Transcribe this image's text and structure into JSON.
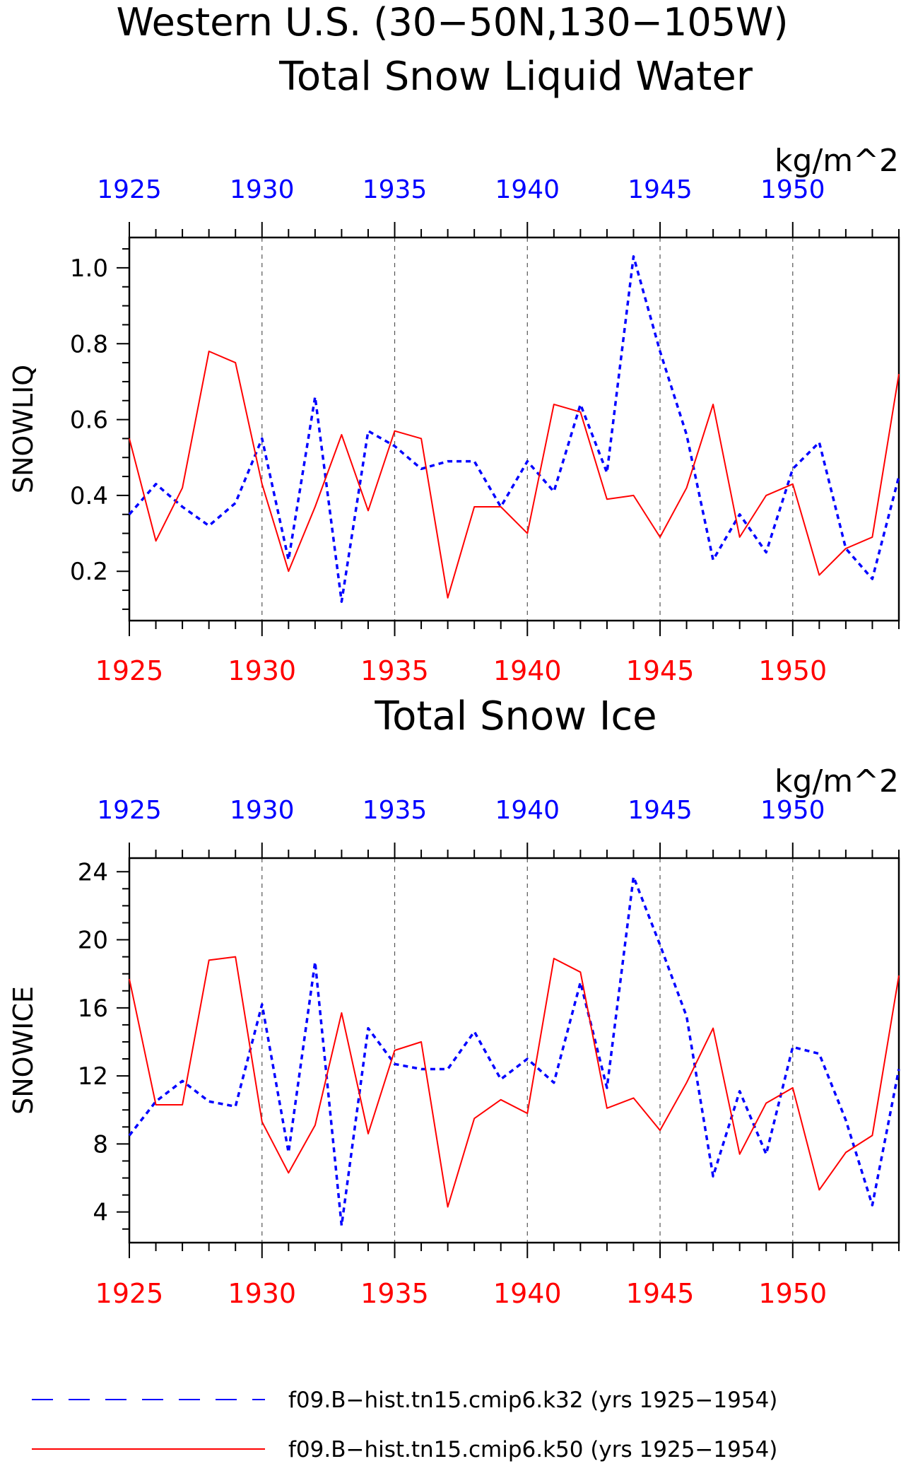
{
  "figure": {
    "title_line1": "Western U.S. (30−50N,130−105W)"
  },
  "legend": {
    "k32": "f09.B−hist.tn15.cmip6.k32 (yrs 1925−1954)",
    "k50": "f09.B−hist.tn15.cmip6.k50 (yrs 1925−1954)"
  },
  "colors": {
    "k32": "#0000ff",
    "k50": "#ff0000",
    "axis": "#000000",
    "grid": "#555555"
  },
  "chart_data": [
    {
      "type": "line",
      "title": "Total Snow Liquid Water",
      "units": "kg/m^2",
      "ylabel": "SNOWLIQ",
      "xlabel": "",
      "xlim": [
        1925,
        1954
      ],
      "ylim": [
        0.07,
        1.08
      ],
      "yticks": [
        "0.2",
        "0.4",
        "0.6",
        "0.8",
        "1.0"
      ],
      "ytick_values": [
        0.2,
        0.4,
        0.6,
        0.8,
        1.0
      ],
      "xticks_top": [
        "1925",
        "1930",
        "1935",
        "1940",
        "1945",
        "1950"
      ],
      "xticks_bottom": [
        "1925",
        "1930",
        "1935",
        "1940",
        "1945",
        "1950"
      ],
      "xtick_values": [
        1925,
        1930,
        1935,
        1940,
        1945,
        1950
      ],
      "vgrid": [
        1930,
        1935,
        1940,
        1945,
        1950
      ],
      "x": [
        1925,
        1926,
        1927,
        1928,
        1929,
        1930,
        1931,
        1932,
        1933,
        1934,
        1935,
        1936,
        1937,
        1938,
        1939,
        1940,
        1941,
        1942,
        1943,
        1944,
        1945,
        1946,
        1947,
        1948,
        1949,
        1950,
        1951,
        1952,
        1953,
        1954
      ],
      "series": [
        {
          "name": "f09.B−hist.tn15.cmip6.k32 (yrs 1925−1954)",
          "style": "dashed",
          "values": [
            0.35,
            0.43,
            0.37,
            0.32,
            0.38,
            0.55,
            0.23,
            0.66,
            0.12,
            0.57,
            0.53,
            0.47,
            0.49,
            0.49,
            0.37,
            0.49,
            0.41,
            0.64,
            0.46,
            1.03,
            0.78,
            0.56,
            0.23,
            0.35,
            0.25,
            0.47,
            0.54,
            0.26,
            0.18,
            0.45
          ]
        },
        {
          "name": "f09.B−hist.tn15.cmip6.k50 (yrs 1925−1954)",
          "style": "solid",
          "values": [
            0.55,
            0.28,
            0.42,
            0.78,
            0.75,
            0.43,
            0.2,
            0.37,
            0.56,
            0.36,
            0.57,
            0.55,
            0.13,
            0.37,
            0.37,
            0.3,
            0.64,
            0.62,
            0.39,
            0.4,
            0.29,
            0.42,
            0.64,
            0.29,
            0.4,
            0.43,
            0.19,
            0.26,
            0.29,
            0.72
          ]
        }
      ]
    },
    {
      "type": "line",
      "title": "Total Snow Ice",
      "units": "kg/m^2",
      "ylabel": "SNOWICE",
      "xlabel": "",
      "xlim": [
        1925,
        1954
      ],
      "ylim": [
        2.2,
        24.8
      ],
      "yticks": [
        "4",
        "8",
        "12",
        "16",
        "20",
        "24"
      ],
      "ytick_values": [
        4,
        8,
        12,
        16,
        20,
        24
      ],
      "xticks_top": [
        "1925",
        "1930",
        "1935",
        "1940",
        "1945",
        "1950"
      ],
      "xticks_bottom": [
        "1925",
        "1930",
        "1935",
        "1940",
        "1945",
        "1950"
      ],
      "xtick_values": [
        1925,
        1930,
        1935,
        1940,
        1945,
        1950
      ],
      "vgrid": [
        1930,
        1935,
        1940,
        1945,
        1950
      ],
      "x": [
        1925,
        1926,
        1927,
        1928,
        1929,
        1930,
        1931,
        1932,
        1933,
        1934,
        1935,
        1936,
        1937,
        1938,
        1939,
        1940,
        1941,
        1942,
        1943,
        1944,
        1945,
        1946,
        1947,
        1948,
        1949,
        1950,
        1951,
        1952,
        1953,
        1954
      ],
      "series": [
        {
          "name": "f09.B−hist.tn15.cmip6.k32 (yrs 1925−1954)",
          "style": "dashed",
          "values": [
            8.5,
            10.5,
            11.7,
            10.5,
            10.2,
            16.2,
            7.5,
            18.7,
            3.2,
            14.8,
            12.7,
            12.4,
            12.4,
            14.6,
            11.8,
            13.0,
            11.6,
            17.5,
            11.3,
            23.7,
            19.7,
            15.5,
            6.1,
            11.1,
            7.4,
            13.7,
            13.3,
            9.4,
            4.4,
            12.4
          ]
        },
        {
          "name": "f09.B−hist.tn15.cmip6.k50 (yrs 1925−1954)",
          "style": "solid",
          "values": [
            17.7,
            10.3,
            10.3,
            18.8,
            19.0,
            9.3,
            6.3,
            9.1,
            15.7,
            8.6,
            13.5,
            14.0,
            4.3,
            9.5,
            10.6,
            9.8,
            18.9,
            18.1,
            10.1,
            10.7,
            8.8,
            11.6,
            14.8,
            7.4,
            10.4,
            11.3,
            5.3,
            7.5,
            8.5,
            17.9
          ]
        }
      ]
    }
  ]
}
